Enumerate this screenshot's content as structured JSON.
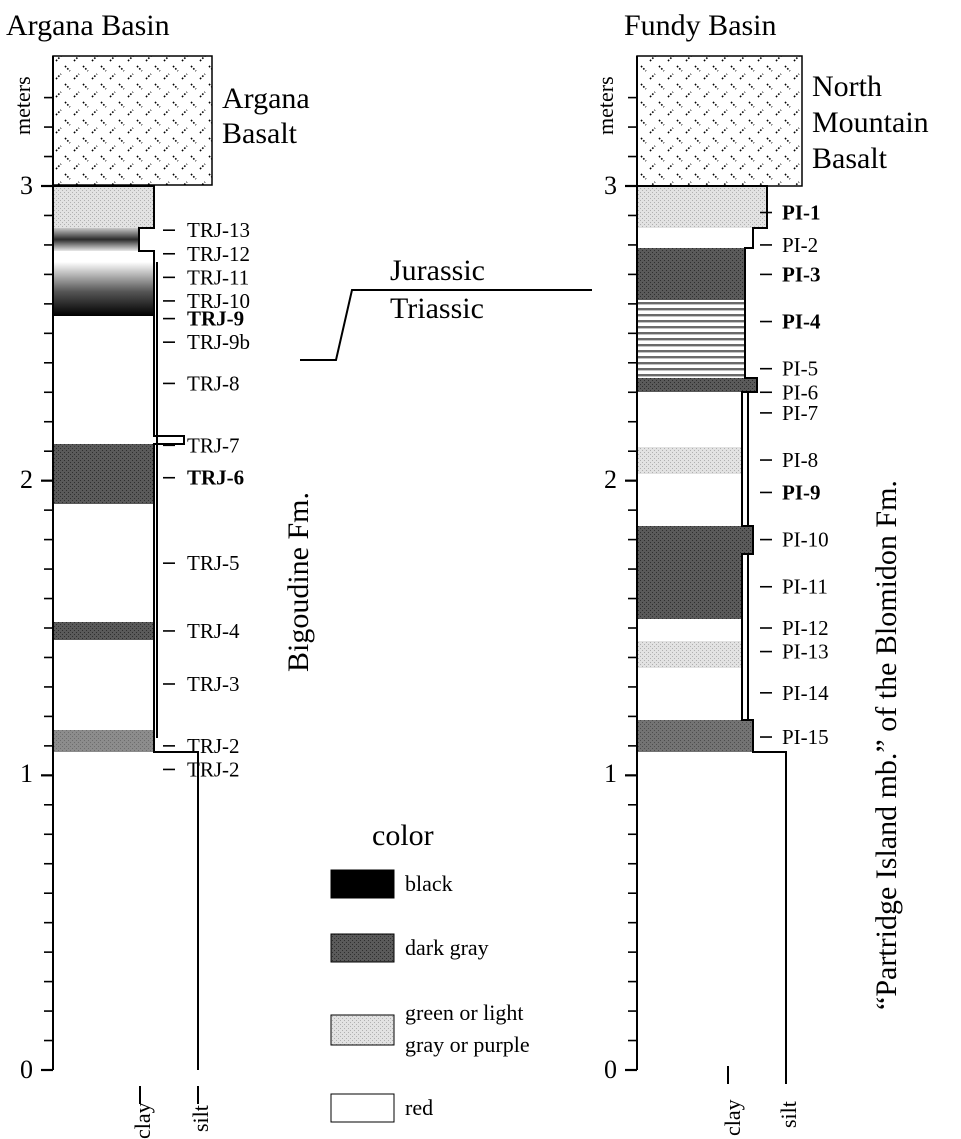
{
  "colors": {
    "black": "#000000",
    "dark_gray": "#555555",
    "light": "#d6d6d6",
    "red": "#ffffff"
  },
  "left": {
    "title": "Argana Basin",
    "units_label": "meters",
    "ticks": [
      "0",
      "1",
      "2",
      "3"
    ],
    "basalt": [
      "Argana",
      "Basalt"
    ],
    "formation": "Bigoudine Fm.",
    "grain": [
      "clay",
      "silt"
    ],
    "samples": [
      {
        "label": "TRJ-13",
        "m": 2.85,
        "bold": false
      },
      {
        "label": "TRJ-12",
        "m": 2.77,
        "bold": false
      },
      {
        "label": "TRJ-11",
        "m": 2.69,
        "bold": false
      },
      {
        "label": "TRJ-10",
        "m": 2.61,
        "bold": false
      },
      {
        "label": "TRJ-9",
        "m": 2.55,
        "bold": true
      },
      {
        "label": "TRJ-9b",
        "m": 2.47,
        "bold": false
      },
      {
        "label": "TRJ-8",
        "m": 2.33,
        "bold": false
      },
      {
        "label": "TRJ-7",
        "m": 2.12,
        "bold": false
      },
      {
        "label": "TRJ-6",
        "m": 2.01,
        "bold": true
      },
      {
        "label": "TRJ-5",
        "m": 1.72,
        "bold": false
      },
      {
        "label": "TRJ-4",
        "m": 1.49,
        "bold": false
      },
      {
        "label": "TRJ-3",
        "m": 1.31,
        "bold": false
      },
      {
        "label": "TRJ-2",
        "m": 1.1,
        "bold": false
      },
      {
        "label": "TRJ-2",
        "m": 1.02,
        "bold": false
      }
    ]
  },
  "boundary": [
    "Jurassic",
    "Triassic"
  ],
  "right": {
    "title": "Fundy Basin",
    "units_label": "meters",
    "ticks": [
      "0",
      "1",
      "2",
      "3"
    ],
    "basalt": [
      "North",
      "Mountain",
      "Basalt"
    ],
    "formation": "“Partridge Island mb.” of the Blomidon Fm.",
    "grain": [
      "clay",
      "silt"
    ],
    "samples": [
      {
        "label": "PI-1",
        "m": 2.91,
        "bold": true
      },
      {
        "label": "PI-2",
        "m": 2.8,
        "bold": false
      },
      {
        "label": "PI-3",
        "m": 2.7,
        "bold": true
      },
      {
        "label": "PI-4",
        "m": 2.54,
        "bold": true
      },
      {
        "label": "PI-5",
        "m": 2.38,
        "bold": false
      },
      {
        "label": "PI-6",
        "m": 2.3,
        "bold": false
      },
      {
        "label": "PI-7",
        "m": 2.23,
        "bold": false
      },
      {
        "label": "PI-8",
        "m": 2.07,
        "bold": false
      },
      {
        "label": "PI-9",
        "m": 1.96,
        "bold": true
      },
      {
        "label": "PI-10",
        "m": 1.8,
        "bold": false
      },
      {
        "label": "PI-11",
        "m": 1.64,
        "bold": false
      },
      {
        "label": "PI-12",
        "m": 1.5,
        "bold": false
      },
      {
        "label": "PI-13",
        "m": 1.42,
        "bold": false
      },
      {
        "label": "PI-14",
        "m": 1.28,
        "bold": false
      },
      {
        "label": "PI-15",
        "m": 1.13,
        "bold": false
      }
    ]
  },
  "legend": {
    "title": "color",
    "items": [
      {
        "key": "black",
        "label": [
          "black"
        ]
      },
      {
        "key": "dark_gray",
        "label": [
          "dark gray"
        ]
      },
      {
        "key": "light",
        "label": [
          "green or light",
          "gray or purple"
        ]
      },
      {
        "key": "red",
        "label": [
          "red"
        ]
      }
    ]
  }
}
